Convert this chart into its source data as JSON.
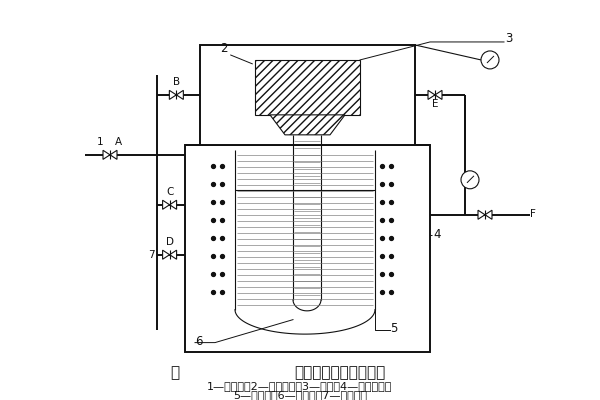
{
  "title_fig": "图",
  "title_main": "真空压差铸造工艺原理",
  "caption_line1": "1—抽真空；2—上真空室；3—铸型；4—下真空室；",
  "caption_line2": "5—电阻炉；6—升液管；7—氮气入口",
  "bg_color": "#ffffff",
  "line_color": "#111111",
  "text_color": "#111111",
  "font_size_title": 11,
  "font_size_caption": 8,
  "font_size_label": 7.5
}
